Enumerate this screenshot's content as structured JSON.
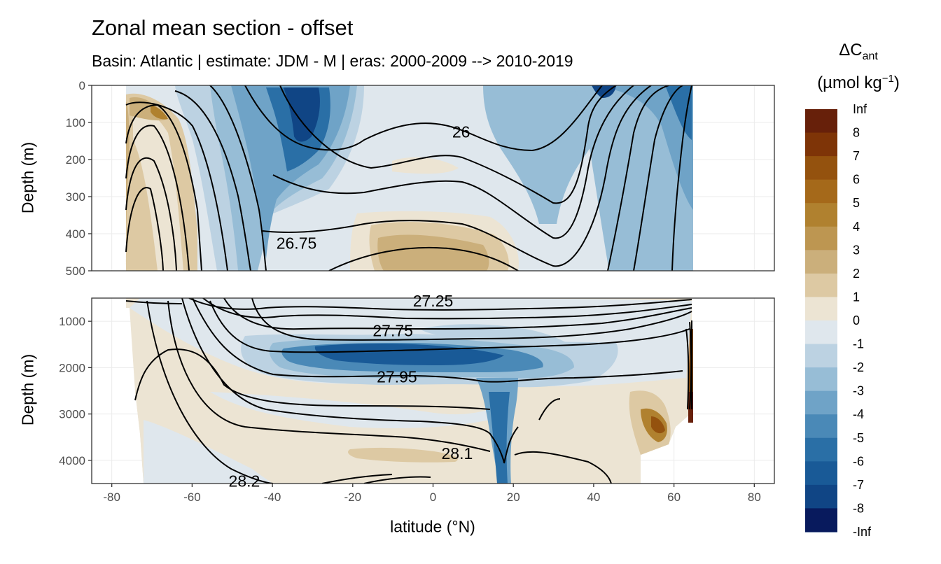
{
  "title": "Zonal mean section - offset",
  "subtitle": "Basin: Atlantic | estimate: JDM - M | eras: 2000-2009 --> 2010-2019",
  "chart_data": {
    "type": "heatmap",
    "xlabel": "latitude (°N)",
    "ylabel": "Depth (m)",
    "xlim": [
      -85,
      85
    ],
    "x_ticks": [
      "-80",
      "-60",
      "-40",
      "-20",
      "0",
      "20",
      "40",
      "60",
      "80"
    ],
    "x_tick_values": [
      -80,
      -60,
      -40,
      -20,
      0,
      20,
      40,
      60,
      80
    ],
    "panels": [
      {
        "name": "upper",
        "ylim": [
          0,
          500
        ],
        "y_ticks": [
          "0",
          "100",
          "200",
          "300",
          "400",
          "500"
        ],
        "y_tick_values": [
          0,
          100,
          200,
          300,
          400,
          500
        ],
        "contour_labels": [
          {
            "text": "26",
            "lat": 7,
            "depth": 125
          },
          {
            "text": "26.75",
            "lat": -34,
            "depth": 425
          }
        ]
      },
      {
        "name": "lower",
        "ylim": [
          500,
          4500
        ],
        "y_ticks": [
          "1000",
          "2000",
          "3000",
          "4000"
        ],
        "y_tick_values": [
          1000,
          2000,
          3000,
          4000
        ],
        "contour_labels": [
          {
            "text": "27.25",
            "lat": 0,
            "depth": 560
          },
          {
            "text": "27.75",
            "lat": -10,
            "depth": 1200
          },
          {
            "text": "27.95",
            "lat": -9,
            "depth": 2200
          },
          {
            "text": "28.1",
            "lat": 6,
            "depth": 3850
          },
          {
            "text": "28.2",
            "lat": -47,
            "depth": 4450
          }
        ]
      }
    ],
    "legend": {
      "title_main": "ΔC",
      "title_sub": "ant",
      "unit_main": "(µmol kg",
      "unit_sup": "−1",
      "unit_close": ")",
      "labels": [
        "Inf",
        "8",
        "7",
        "6",
        "5",
        "4",
        "3",
        "2",
        "1",
        "0",
        "-1",
        "-2",
        "-3",
        "-4",
        "-5",
        "-6",
        "-7",
        "-8",
        "-Inf"
      ],
      "colors": [
        "#67200a",
        "#7e3407",
        "#94520e",
        "#a5691a",
        "#b0812f",
        "#bd9651",
        "#cbaf7b",
        "#ddc9a3",
        "#ece4d3",
        "#dfe7ed",
        "#bcd2e2",
        "#97bdd6",
        "#6fa3c7",
        "#4a89b7",
        "#2a6fa6",
        "#195a97",
        "#104585",
        "#0c2f72",
        "#081a5d"
      ]
    }
  }
}
